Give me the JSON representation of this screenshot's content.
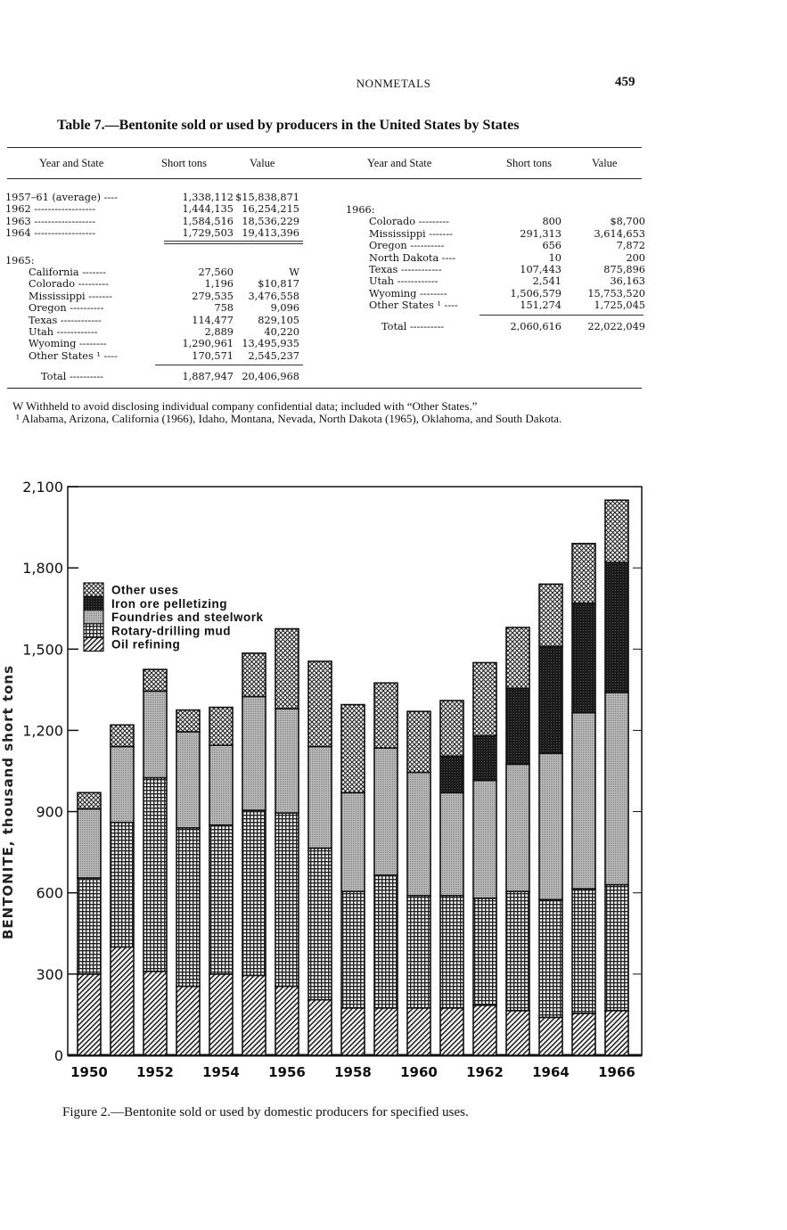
{
  "page": {
    "running_head": "NONMETALS",
    "page_number": "459"
  },
  "table": {
    "title": "Table 7.—Bentonite sold or used by producers in the United States by States",
    "columns": [
      "Year and State",
      "Short tons",
      "Value"
    ],
    "left": [
      {
        "label": "1957–61 (average) ----",
        "tons": "1,338,112",
        "value": "$15,838,871"
      },
      {
        "label": "1962 ------------------",
        "tons": "1,444,135",
        "value": "16,254,215"
      },
      {
        "label": "1963 ------------------",
        "tons": "1,584,516",
        "value": "18,536,229"
      },
      {
        "label": "1964 ------------------",
        "tons": "1,729,503",
        "value": "19,413,396",
        "double_rule": true
      },
      {
        "label": "1965:",
        "tons": "",
        "value": "",
        "gap": true
      },
      {
        "label": "California -------",
        "tons": "27,560",
        "value": "W",
        "indent": true
      },
      {
        "label": "Colorado ---------",
        "tons": "1,196",
        "value": "$10,817",
        "indent": true
      },
      {
        "label": "Mississippi -------",
        "tons": "279,535",
        "value": "3,476,558",
        "indent": true
      },
      {
        "label": "Oregon ----------",
        "tons": "758",
        "value": "9,096",
        "indent": true
      },
      {
        "label": "Texas ------------",
        "tons": "114,477",
        "value": "829,105",
        "indent": true
      },
      {
        "label": "Utah ------------",
        "tons": "2,889",
        "value": "40,220",
        "indent": true
      },
      {
        "label": "Wyoming --------",
        "tons": "1,290,961",
        "value": "13,495,935",
        "indent": true
      },
      {
        "label": "Other States ¹ ----",
        "tons": "170,571",
        "value": "2,545,237",
        "indent": true,
        "rule_after": true
      },
      {
        "label": "Total ----------",
        "tons": "1,887,947",
        "value": "20,406,968",
        "total": true
      }
    ],
    "right": [
      {
        "label": "1966:",
        "tons": "",
        "value": ""
      },
      {
        "label": "Colorado ---------",
        "tons": "800",
        "value": "$8,700",
        "indent": true
      },
      {
        "label": "Mississippi -------",
        "tons": "291,313",
        "value": "3,614,653",
        "indent": true
      },
      {
        "label": "Oregon ----------",
        "tons": "656",
        "value": "7,872",
        "indent": true
      },
      {
        "label": "North Dakota ----",
        "tons": "10",
        "value": "200",
        "indent": true
      },
      {
        "label": "Texas ------------",
        "tons": "107,443",
        "value": "875,896",
        "indent": true
      },
      {
        "label": "Utah ------------",
        "tons": "2,541",
        "value": "36,163",
        "indent": true
      },
      {
        "label": "Wyoming --------",
        "tons": "1,506,579",
        "value": "15,753,520",
        "indent": true
      },
      {
        "label": "Other States ¹ ----",
        "tons": "151,274",
        "value": "1,725,045",
        "indent": true,
        "rule_after": true
      },
      {
        "label": "Total ----------",
        "tons": "2,060,616",
        "value": "22,022,049",
        "total": true
      }
    ],
    "footnotes": [
      "W Withheld to avoid disclosing individual company confidential data; included with “Other States.”",
      "¹ Alabama, Arizona, California (1966), Idaho, Montana, Nevada, North Dakota (1965), Oklahoma, and South Dakota."
    ]
  },
  "chart_data": {
    "type": "bar",
    "stacked": true,
    "title": "",
    "caption": "Figure 2.—Bentonite sold or used by domestic producers for specified uses.",
    "ylabel": "BENTONITE, thousand short tons",
    "xlabel": "",
    "ylim": [
      0,
      2100
    ],
    "yticks": [
      "0",
      "300",
      "600",
      "900",
      "1,200",
      "1,500",
      "1,800",
      "2,100"
    ],
    "ytick_values": [
      0,
      300,
      600,
      900,
      1200,
      1500,
      1800,
      2100
    ],
    "xtick_labels": [
      "1950",
      "1952",
      "1954",
      "1956",
      "1958",
      "1960",
      "1962",
      "1964",
      "1966"
    ],
    "categories": [
      1950,
      1951,
      1952,
      1953,
      1954,
      1955,
      1956,
      1957,
      1958,
      1959,
      1960,
      1961,
      1962,
      1963,
      1964,
      1965,
      1966
    ],
    "legend_position": "top-left",
    "grid": false,
    "series": [
      {
        "name": "Oil refining",
        "pattern": "diagonal",
        "values": [
          300,
          400,
          310,
          255,
          300,
          295,
          255,
          205,
          175,
          175,
          175,
          175,
          185,
          165,
          140,
          155,
          165
        ]
      },
      {
        "name": "Rotary-drilling mud",
        "pattern": "grid",
        "values": [
          355,
          460,
          715,
          585,
          550,
          610,
          640,
          560,
          430,
          490,
          415,
          415,
          395,
          440,
          435,
          460,
          465
        ]
      },
      {
        "name": "Foundries and steelwork",
        "pattern": "gray",
        "values": [
          255,
          280,
          320,
          355,
          295,
          420,
          385,
          375,
          365,
          470,
          455,
          380,
          435,
          470,
          540,
          650,
          710
        ]
      },
      {
        "name": "Iron ore pelletizing",
        "pattern": "black",
        "values": [
          0,
          0,
          0,
          0,
          0,
          0,
          0,
          0,
          0,
          0,
          0,
          135,
          165,
          280,
          395,
          405,
          480
        ]
      },
      {
        "name": "Other uses",
        "pattern": "crosshatch",
        "values": [
          60,
          80,
          80,
          80,
          140,
          160,
          295,
          315,
          325,
          240,
          225,
          205,
          270,
          225,
          230,
          220,
          230
        ]
      }
    ],
    "legend_order": [
      "Other uses",
      "Iron ore pelletizing",
      "Foundries and steelwork",
      "Rotary-drilling mud",
      "Oil refining"
    ]
  }
}
